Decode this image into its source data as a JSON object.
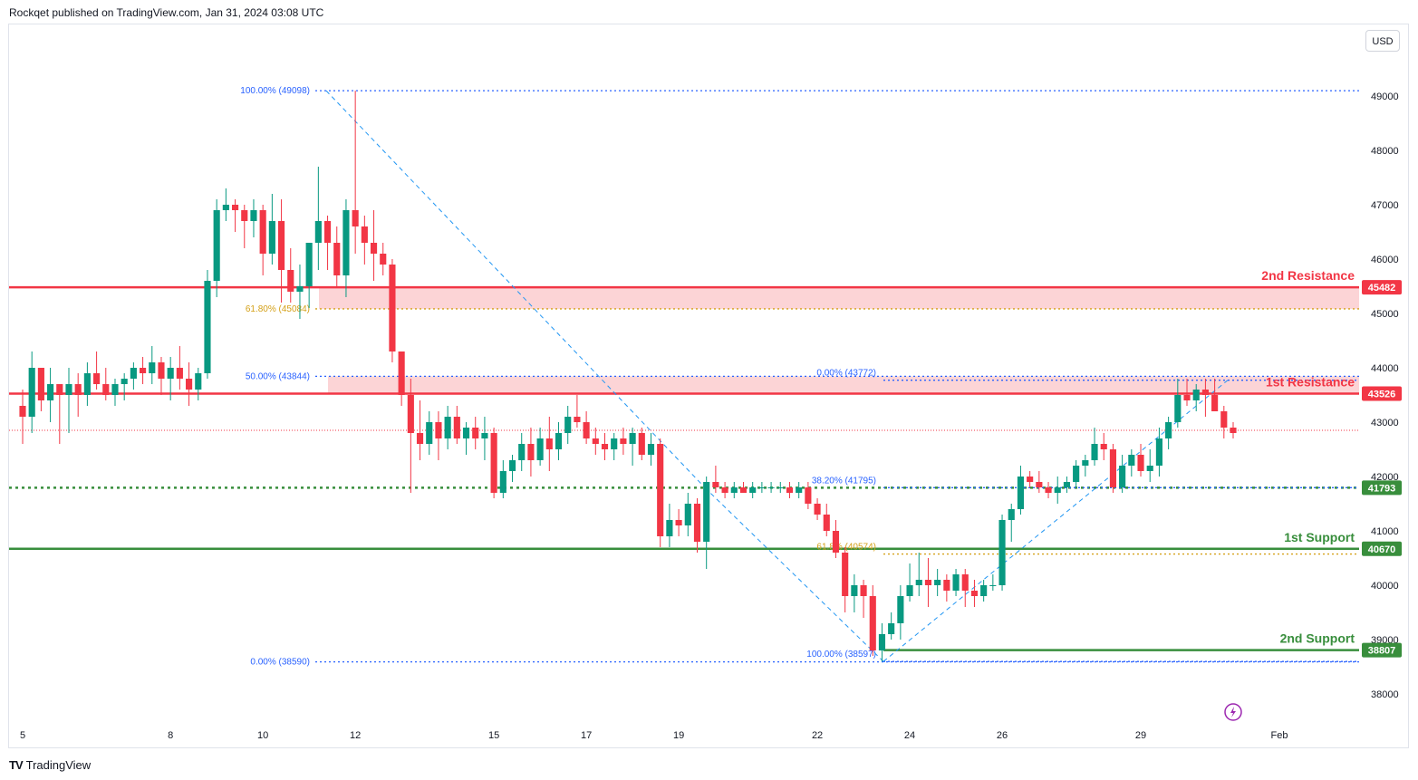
{
  "header": {
    "publisher_line": "Rockqet published on TradingView.com, Jan 31, 2024 03:08 UTC"
  },
  "currency_button": {
    "label": "USD"
  },
  "footer": {
    "brand_mark": "TV",
    "brand_name": "TradingView"
  },
  "colors": {
    "up": "#089981",
    "down": "#f23645",
    "resistance": "#f23645",
    "resistance_zone": "#fcd4d6",
    "support": "#388e3c",
    "fib_line": "#2962ff",
    "fib_text": "#2962ff",
    "fib_golden": "#d4a017",
    "dashed_trend": "#2196f3",
    "last_price_line": "#f23645",
    "label_bg_red": "#f23645",
    "label_bg_green": "#388e3c"
  },
  "chart_data": {
    "type": "candlestick",
    "title": "",
    "xlabel": "",
    "ylabel": "",
    "ylim": [
      37500,
      49700
    ],
    "y_ticks": [
      38000,
      39000,
      40000,
      41000,
      42000,
      43000,
      44000,
      45000,
      46000,
      47000,
      48000,
      49000
    ],
    "x_ticks": [
      {
        "label": "5",
        "index": 0
      },
      {
        "label": "8",
        "index": 16
      },
      {
        "label": "10",
        "index": 26
      },
      {
        "label": "12",
        "index": 36
      },
      {
        "label": "15",
        "index": 51
      },
      {
        "label": "17",
        "index": 61
      },
      {
        "label": "19",
        "index": 71
      },
      {
        "label": "22",
        "index": 86
      },
      {
        "label": "24",
        "index": 96
      },
      {
        "label": "26",
        "index": 106
      },
      {
        "label": "29",
        "index": 121
      },
      {
        "label": "Feb",
        "index": 136
      }
    ],
    "x_index_max": 145,
    "candles": [
      [
        43300,
        43600,
        42600,
        43100
      ],
      [
        43100,
        44300,
        42800,
        44000
      ],
      [
        44000,
        44000,
        43200,
        43400
      ],
      [
        43400,
        44000,
        43000,
        43700
      ],
      [
        43700,
        43700,
        42600,
        43500
      ],
      [
        43500,
        44000,
        42800,
        43700
      ],
      [
        43700,
        43900,
        43100,
        43500
      ],
      [
        43500,
        44100,
        43300,
        43900
      ],
      [
        43900,
        44300,
        43600,
        43700
      ],
      [
        43700,
        44000,
        43400,
        43500
      ],
      [
        43500,
        43800,
        43300,
        43700
      ],
      [
        43700,
        43900,
        43400,
        43800
      ],
      [
        43800,
        44100,
        43600,
        44000
      ],
      [
        44000,
        44200,
        43700,
        43900
      ],
      [
        43900,
        44400,
        43700,
        44100
      ],
      [
        44100,
        44200,
        43500,
        43800
      ],
      [
        43800,
        44200,
        43400,
        44000
      ],
      [
        44000,
        44400,
        43600,
        43800
      ],
      [
        43800,
        44100,
        43300,
        43600
      ],
      [
        43600,
        44000,
        43400,
        43900
      ],
      [
        43900,
        45800,
        43800,
        45600
      ],
      [
        45600,
        47100,
        45300,
        46900
      ],
      [
        46900,
        47300,
        46700,
        47000
      ],
      [
        47000,
        47100,
        46500,
        46900
      ],
      [
        46900,
        47000,
        46200,
        46700
      ],
      [
        46700,
        47100,
        46400,
        46900
      ],
      [
        46900,
        47000,
        45700,
        46100
      ],
      [
        46100,
        47200,
        45900,
        46700
      ],
      [
        46700,
        47100,
        45200,
        45800
      ],
      [
        45800,
        46200,
        45200,
        45400
      ],
      [
        45400,
        45900,
        44900,
        45500
      ],
      [
        45500,
        46300,
        45100,
        46300
      ],
      [
        46300,
        47700,
        45800,
        46700
      ],
      [
        46700,
        46800,
        45800,
        46300
      ],
      [
        46300,
        46600,
        45500,
        45700
      ],
      [
        45700,
        47100,
        45300,
        46900
      ],
      [
        46900,
        49098,
        46100,
        46600
      ],
      [
        46600,
        46800,
        45900,
        46300
      ],
      [
        46300,
        46900,
        45600,
        46100
      ],
      [
        46100,
        46300,
        45700,
        45900
      ],
      [
        45900,
        46000,
        44100,
        44300
      ],
      [
        44300,
        44300,
        43300,
        43500
      ],
      [
        43500,
        43800,
        41700,
        42800
      ],
      [
        42800,
        43400,
        42300,
        42600
      ],
      [
        42600,
        43200,
        42400,
        43000
      ],
      [
        43000,
        43200,
        42300,
        42700
      ],
      [
        42700,
        43300,
        42500,
        43100
      ],
      [
        43100,
        43300,
        42600,
        42700
      ],
      [
        42700,
        43000,
        42400,
        42900
      ],
      [
        42900,
        43100,
        42500,
        42700
      ],
      [
        42700,
        43100,
        42300,
        42800
      ],
      [
        42800,
        42900,
        41600,
        41700
      ],
      [
        41700,
        42300,
        41600,
        42100
      ],
      [
        42100,
        42400,
        41900,
        42300
      ],
      [
        42300,
        42800,
        42100,
        42600
      ],
      [
        42600,
        42900,
        42000,
        42300
      ],
      [
        42300,
        42900,
        42200,
        42700
      ],
      [
        42700,
        43100,
        42100,
        42500
      ],
      [
        42500,
        43000,
        42300,
        42800
      ],
      [
        42800,
        43300,
        42600,
        43100
      ],
      [
        43100,
        43500,
        42900,
        43000
      ],
      [
        43000,
        43200,
        42600,
        42700
      ],
      [
        42700,
        42900,
        42400,
        42600
      ],
      [
        42600,
        42800,
        42300,
        42500
      ],
      [
        42500,
        42800,
        42300,
        42700
      ],
      [
        42700,
        42900,
        42400,
        42600
      ],
      [
        42600,
        42900,
        42200,
        42800
      ],
      [
        42800,
        42900,
        42300,
        42400
      ],
      [
        42400,
        42800,
        42200,
        42600
      ],
      [
        42600,
        42700,
        40700,
        40900
      ],
      [
        40900,
        41500,
        40700,
        41200
      ],
      [
        41200,
        41400,
        40900,
        41100
      ],
      [
        41100,
        41700,
        40900,
        41500
      ],
      [
        41500,
        41600,
        40600,
        40800
      ],
      [
        40800,
        42000,
        40300,
        41900
      ],
      [
        41900,
        42200,
        41700,
        41800
      ],
      [
        41800,
        41900,
        41600,
        41700
      ],
      [
        41700,
        41900,
        41600,
        41800
      ],
      [
        41800,
        41900,
        41700,
        41700
      ],
      [
        41700,
        41900,
        41600,
        41800
      ],
      [
        41800,
        41900,
        41700,
        41800
      ],
      [
        41800,
        41900,
        41700,
        41800
      ],
      [
        41800,
        41900,
        41700,
        41800
      ],
      [
        41800,
        41900,
        41600,
        41700
      ],
      [
        41700,
        41900,
        41600,
        41800
      ],
      [
        41800,
        41900,
        41400,
        41500
      ],
      [
        41500,
        41600,
        41200,
        41300
      ],
      [
        41300,
        41500,
        40900,
        41000
      ],
      [
        41000,
        41200,
        40500,
        40600
      ],
      [
        40600,
        40700,
        39500,
        39800
      ],
      [
        39800,
        40200,
        39500,
        40000
      ],
      [
        40000,
        40100,
        39400,
        39800
      ],
      [
        39800,
        40000,
        38700,
        38800
      ],
      [
        38800,
        39300,
        38597,
        39100
      ],
      [
        39100,
        39500,
        39000,
        39300
      ],
      [
        39300,
        40000,
        39000,
        39800
      ],
      [
        39800,
        40400,
        39700,
        40000
      ],
      [
        40000,
        40600,
        39800,
        40100
      ],
      [
        40100,
        40500,
        39600,
        40000
      ],
      [
        40000,
        40300,
        39800,
        40100
      ],
      [
        40100,
        40200,
        39700,
        39900
      ],
      [
        39900,
        40300,
        39800,
        40200
      ],
      [
        40200,
        40300,
        39600,
        39900
      ],
      [
        39900,
        40100,
        39600,
        39800
      ],
      [
        39800,
        40100,
        39700,
        40000
      ],
      [
        40000,
        40200,
        39900,
        40000
      ],
      [
        40000,
        41300,
        39900,
        41200
      ],
      [
        41200,
        41500,
        40800,
        41400
      ],
      [
        41400,
        42200,
        41300,
        42000
      ],
      [
        42000,
        42100,
        41800,
        41900
      ],
      [
        41900,
        42100,
        41700,
        41800
      ],
      [
        41800,
        41900,
        41600,
        41700
      ],
      [
        41700,
        42000,
        41500,
        41800
      ],
      [
        41800,
        42000,
        41700,
        41900
      ],
      [
        41900,
        42300,
        41800,
        42200
      ],
      [
        42200,
        42400,
        42000,
        42300
      ],
      [
        42300,
        42900,
        42200,
        42600
      ],
      [
        42600,
        42800,
        42300,
        42500
      ],
      [
        42500,
        42600,
        41700,
        41800
      ],
      [
        41800,
        42400,
        41700,
        42200
      ],
      [
        42200,
        42500,
        42000,
        42400
      ],
      [
        42400,
        42600,
        42000,
        42100
      ],
      [
        42100,
        42500,
        41900,
        42200
      ],
      [
        42200,
        42900,
        42000,
        42700
      ],
      [
        42700,
        43100,
        42500,
        43000
      ],
      [
        43000,
        43800,
        42900,
        43500
      ],
      [
        43500,
        43800,
        43300,
        43400
      ],
      [
        43400,
        43700,
        43200,
        43600
      ],
      [
        43600,
        43800,
        43100,
        43500
      ],
      [
        43500,
        43800,
        43300,
        43200
      ],
      [
        43200,
        43300,
        42700,
        42900
      ],
      [
        42900,
        43000,
        42700,
        42800
      ]
    ],
    "horizontal_levels": [
      {
        "name": "2nd Resistance",
        "value": 45482,
        "color": "resistance"
      },
      {
        "name": "1st Resistance",
        "value": 43526,
        "color": "resistance"
      },
      {
        "name": "",
        "value": 41793,
        "color": "support",
        "style": "dotted"
      },
      {
        "name": "1st Support",
        "value": 40670,
        "color": "support"
      },
      {
        "name": "2nd Support",
        "value": 38807,
        "color": "support"
      }
    ],
    "price_labels": [
      "45482",
      "43526",
      "41793",
      "40670",
      "38807"
    ],
    "zone_labels": {
      "second_resistance": "2nd Resistance",
      "first_resistance": "1st Resistance",
      "first_support": "1st Support",
      "second_support": "2nd Support"
    },
    "fib_left": [
      {
        "text": "100.00% (49098)",
        "value": 49098
      },
      {
        "text": "61.80% (45084)",
        "value": 45084
      },
      {
        "text": "50.00% (43844)",
        "value": 43844
      },
      {
        "text": "0.00% (38590)",
        "value": 38590
      }
    ],
    "fib_right": [
      {
        "text": "0.00% (43772)",
        "value": 43772
      },
      {
        "text": "38.20% (41795)",
        "value": 41795
      },
      {
        "text": "61.8% (40574)",
        "value": 40574
      },
      {
        "text": "100.00% (38597)",
        "value": 38597
      }
    ],
    "last_price": 42850
  }
}
